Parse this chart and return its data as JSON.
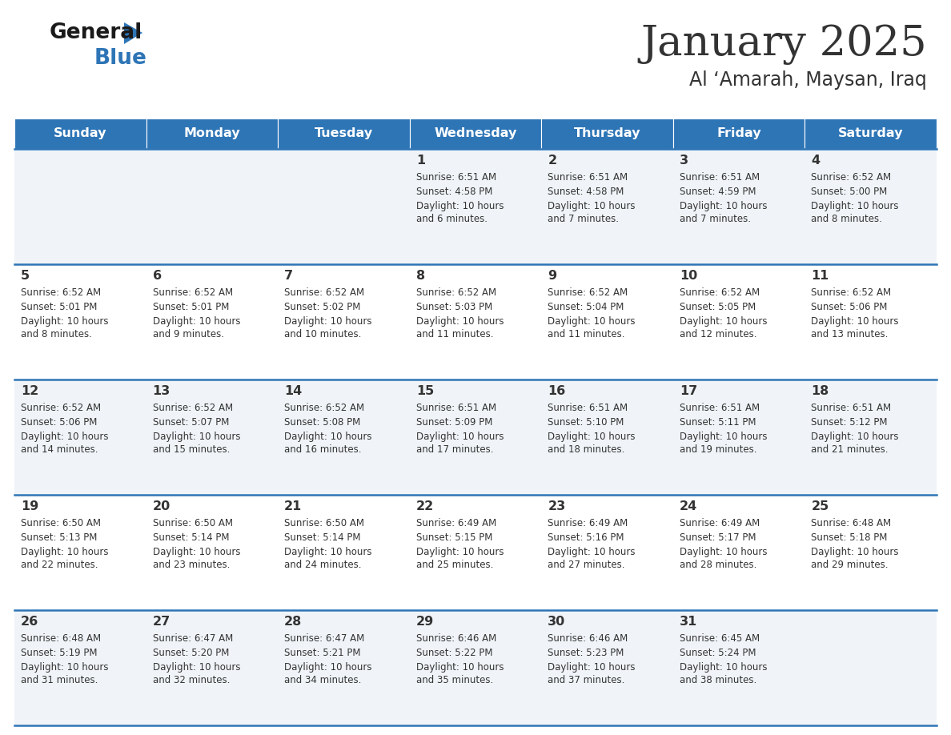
{
  "title": "January 2025",
  "subtitle": "Al ‘Amarah, Maysan, Iraq",
  "header_bg_color": "#2E75B6",
  "header_text_color": "#FFFFFF",
  "cell_bg_color_odd": "#F0F4F8",
  "cell_bg_color_even": "#FFFFFF",
  "row_line_color": "#2E75B6",
  "text_color": "#333333",
  "days_of_week": [
    "Sunday",
    "Monday",
    "Tuesday",
    "Wednesday",
    "Thursday",
    "Friday",
    "Saturday"
  ],
  "logo_general_color": "#1a1a1a",
  "logo_blue_color": "#2E75B6",
  "logo_triangle_color": "#2E75B6",
  "calendar_data": [
    [
      {
        "day": "",
        "sunrise": "",
        "sunset": "",
        "daylight": ""
      },
      {
        "day": "",
        "sunrise": "",
        "sunset": "",
        "daylight": ""
      },
      {
        "day": "",
        "sunrise": "",
        "sunset": "",
        "daylight": ""
      },
      {
        "day": "1",
        "sunrise": "6:51 AM",
        "sunset": "4:58 PM",
        "daylight": "10 hours and 6 minutes."
      },
      {
        "day": "2",
        "sunrise": "6:51 AM",
        "sunset": "4:58 PM",
        "daylight": "10 hours and 7 minutes."
      },
      {
        "day": "3",
        "sunrise": "6:51 AM",
        "sunset": "4:59 PM",
        "daylight": "10 hours and 7 minutes."
      },
      {
        "day": "4",
        "sunrise": "6:52 AM",
        "sunset": "5:00 PM",
        "daylight": "10 hours and 8 minutes."
      }
    ],
    [
      {
        "day": "5",
        "sunrise": "6:52 AM",
        "sunset": "5:01 PM",
        "daylight": "10 hours and 8 minutes."
      },
      {
        "day": "6",
        "sunrise": "6:52 AM",
        "sunset": "5:01 PM",
        "daylight": "10 hours and 9 minutes."
      },
      {
        "day": "7",
        "sunrise": "6:52 AM",
        "sunset": "5:02 PM",
        "daylight": "10 hours and 10 minutes."
      },
      {
        "day": "8",
        "sunrise": "6:52 AM",
        "sunset": "5:03 PM",
        "daylight": "10 hours and 11 minutes."
      },
      {
        "day": "9",
        "sunrise": "6:52 AM",
        "sunset": "5:04 PM",
        "daylight": "10 hours and 11 minutes."
      },
      {
        "day": "10",
        "sunrise": "6:52 AM",
        "sunset": "5:05 PM",
        "daylight": "10 hours and 12 minutes."
      },
      {
        "day": "11",
        "sunrise": "6:52 AM",
        "sunset": "5:06 PM",
        "daylight": "10 hours and 13 minutes."
      }
    ],
    [
      {
        "day": "12",
        "sunrise": "6:52 AM",
        "sunset": "5:06 PM",
        "daylight": "10 hours and 14 minutes."
      },
      {
        "day": "13",
        "sunrise": "6:52 AM",
        "sunset": "5:07 PM",
        "daylight": "10 hours and 15 minutes."
      },
      {
        "day": "14",
        "sunrise": "6:52 AM",
        "sunset": "5:08 PM",
        "daylight": "10 hours and 16 minutes."
      },
      {
        "day": "15",
        "sunrise": "6:51 AM",
        "sunset": "5:09 PM",
        "daylight": "10 hours and 17 minutes."
      },
      {
        "day": "16",
        "sunrise": "6:51 AM",
        "sunset": "5:10 PM",
        "daylight": "10 hours and 18 minutes."
      },
      {
        "day": "17",
        "sunrise": "6:51 AM",
        "sunset": "5:11 PM",
        "daylight": "10 hours and 19 minutes."
      },
      {
        "day": "18",
        "sunrise": "6:51 AM",
        "sunset": "5:12 PM",
        "daylight": "10 hours and 21 minutes."
      }
    ],
    [
      {
        "day": "19",
        "sunrise": "6:50 AM",
        "sunset": "5:13 PM",
        "daylight": "10 hours and 22 minutes."
      },
      {
        "day": "20",
        "sunrise": "6:50 AM",
        "sunset": "5:14 PM",
        "daylight": "10 hours and 23 minutes."
      },
      {
        "day": "21",
        "sunrise": "6:50 AM",
        "sunset": "5:14 PM",
        "daylight": "10 hours and 24 minutes."
      },
      {
        "day": "22",
        "sunrise": "6:49 AM",
        "sunset": "5:15 PM",
        "daylight": "10 hours and 25 minutes."
      },
      {
        "day": "23",
        "sunrise": "6:49 AM",
        "sunset": "5:16 PM",
        "daylight": "10 hours and 27 minutes."
      },
      {
        "day": "24",
        "sunrise": "6:49 AM",
        "sunset": "5:17 PM",
        "daylight": "10 hours and 28 minutes."
      },
      {
        "day": "25",
        "sunrise": "6:48 AM",
        "sunset": "5:18 PM",
        "daylight": "10 hours and 29 minutes."
      }
    ],
    [
      {
        "day": "26",
        "sunrise": "6:48 AM",
        "sunset": "5:19 PM",
        "daylight": "10 hours and 31 minutes."
      },
      {
        "day": "27",
        "sunrise": "6:47 AM",
        "sunset": "5:20 PM",
        "daylight": "10 hours and 32 minutes."
      },
      {
        "day": "28",
        "sunrise": "6:47 AM",
        "sunset": "5:21 PM",
        "daylight": "10 hours and 34 minutes."
      },
      {
        "day": "29",
        "sunrise": "6:46 AM",
        "sunset": "5:22 PM",
        "daylight": "10 hours and 35 minutes."
      },
      {
        "day": "30",
        "sunrise": "6:46 AM",
        "sunset": "5:23 PM",
        "daylight": "10 hours and 37 minutes."
      },
      {
        "day": "31",
        "sunrise": "6:45 AM",
        "sunset": "5:24 PM",
        "daylight": "10 hours and 38 minutes."
      },
      {
        "day": "",
        "sunrise": "",
        "sunset": "",
        "daylight": ""
      }
    ]
  ]
}
